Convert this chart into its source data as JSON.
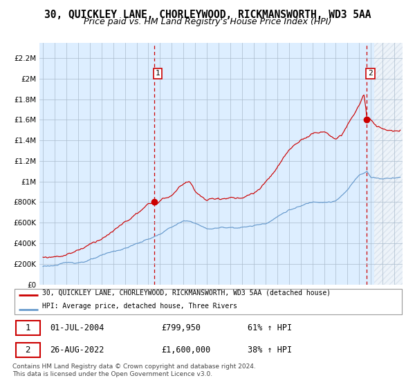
{
  "title": "30, QUICKLEY LANE, CHORLEYWOOD, RICKMANSWORTH, WD3 5AA",
  "subtitle": "Price paid vs. HM Land Registry's House Price Index (HPI)",
  "ytick_vals": [
    0,
    200000,
    400000,
    600000,
    800000,
    1000000,
    1200000,
    1400000,
    1600000,
    1800000,
    2000000,
    2200000
  ],
  "ylim": [
    0,
    2350000
  ],
  "xlim_start": 1994.7,
  "xlim_end": 2025.7,
  "red_line_color": "#cc0000",
  "blue_line_color": "#6699cc",
  "plot_bg_color": "#ddeeff",
  "hatch_color": "#bbccdd",
  "dot_color": "#cc0000",
  "vline_color": "#cc0000",
  "marker1_x": 2004.5,
  "marker1_y": 799950,
  "marker2_x": 2022.65,
  "marker2_y": 1600000,
  "hatch_start": 2023.3,
  "legend_label_red": "30, QUICKLEY LANE, CHORLEYWOOD, RICKMANSWORTH, WD3 5AA (detached house)",
  "legend_label_blue": "HPI: Average price, detached house, Three Rivers",
  "table_row1": [
    "1",
    "01-JUL-2004",
    "£799,950",
    "61% ↑ HPI"
  ],
  "table_row2": [
    "2",
    "26-AUG-2022",
    "£1,600,000",
    "38% ↑ HPI"
  ],
  "footer": "Contains HM Land Registry data © Crown copyright and database right 2024.\nThis data is licensed under the Open Government Licence v3.0.",
  "background_color": "#ffffff",
  "grid_color": "#aabbcc",
  "title_fontsize": 10.5,
  "subtitle_fontsize": 9,
  "tick_fontsize": 7.5
}
